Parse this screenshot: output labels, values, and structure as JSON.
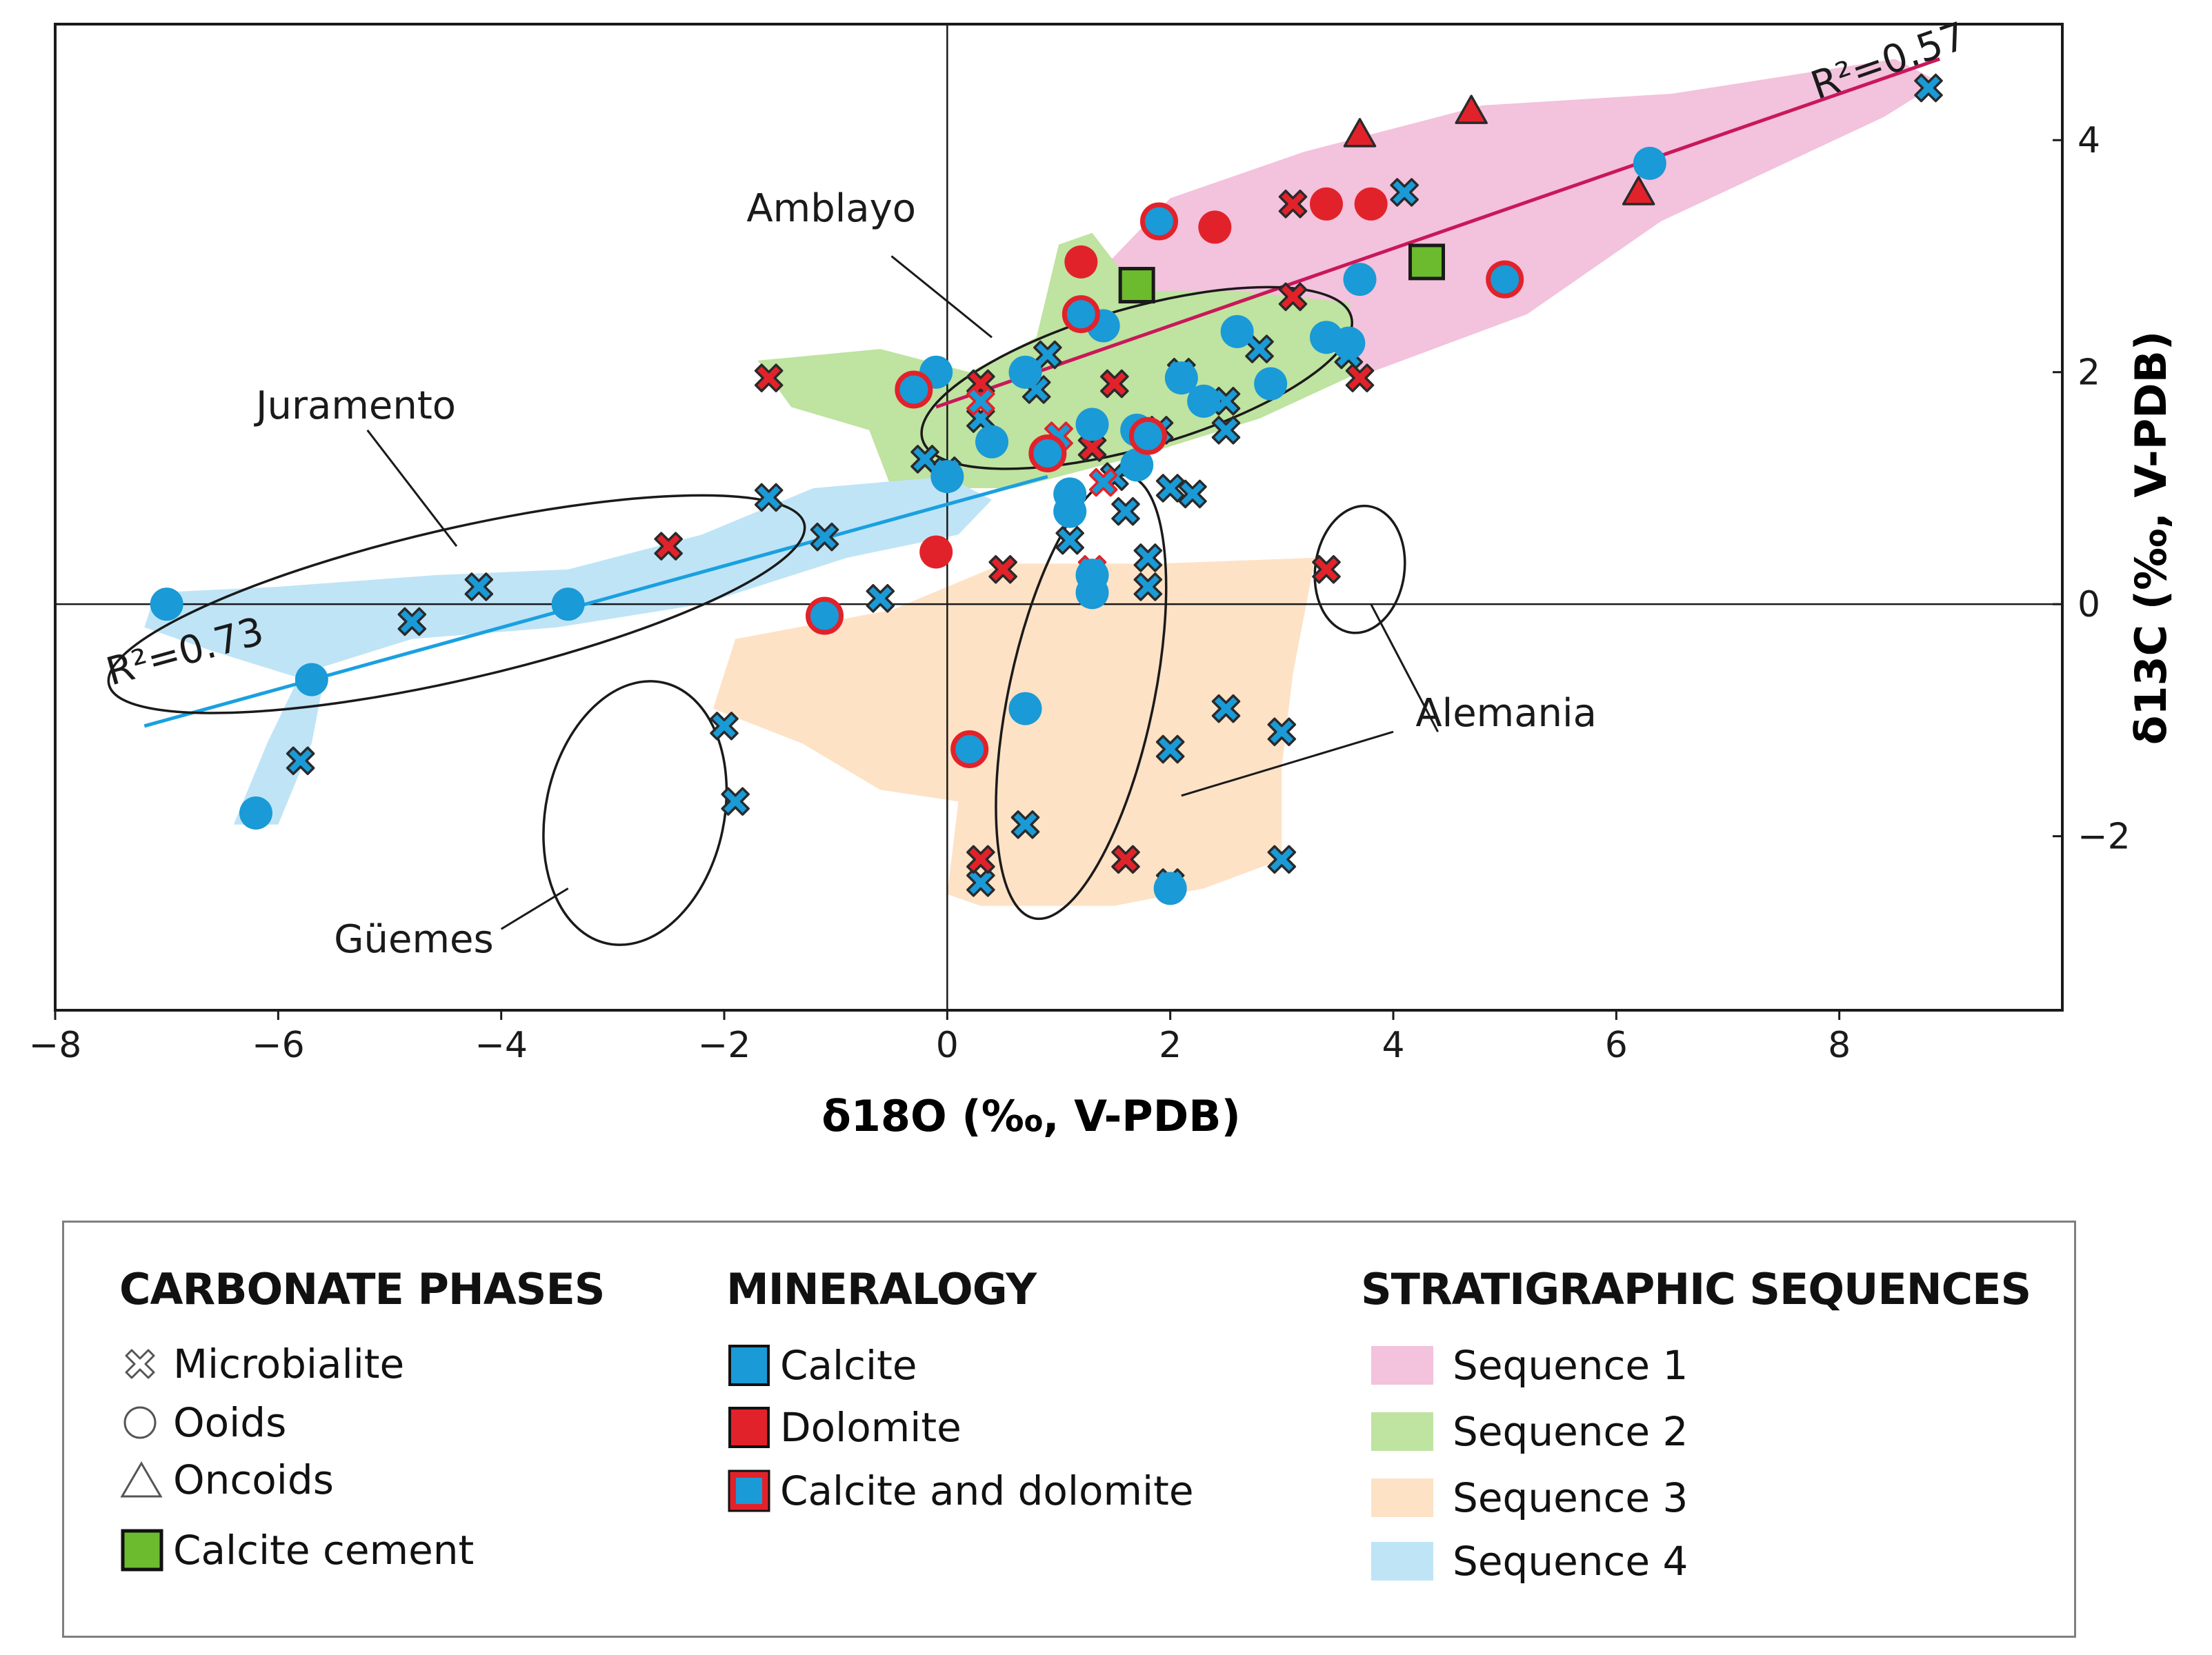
{
  "chart_data": {
    "type": "scatter",
    "xlabel": "δ18O (‰, V-PDB)",
    "ylabel": "δ13C (‰,  V-PDB)",
    "xlim": [
      -8,
      10
    ],
    "ylim": [
      -3.5,
      5
    ],
    "x_ticks": [
      -8,
      -6,
      -4,
      -2,
      0,
      2,
      4,
      6,
      8
    ],
    "x_tick_labels": [
      "−8",
      "−6",
      "−4",
      "−2",
      "0",
      "2",
      "4",
      "6",
      "8"
    ],
    "y_ticks": [
      -2,
      0,
      2,
      4
    ],
    "y_tick_labels": [
      "−2",
      "0",
      "2",
      "4"
    ],
    "colors": {
      "calcite": "#1a9ad6",
      "dolomite": "#e2222a",
      "cement": "#6cba2e",
      "seq1": "#f3c2dc",
      "seq2": "#bfe3a0",
      "seq3": "#fde2c6",
      "seq4": "#bfe4f6",
      "trend1": "#c8185a",
      "trend4": "#1aa0e0"
    },
    "trendlines": [
      {
        "name": "Sequence 1 trend",
        "label": "R²=0.57",
        "x0": -0.1,
        "y0": 1.7,
        "x1": 8.9,
        "y1": 4.7,
        "label_at": [
          7.8,
          4.35
        ],
        "color": "#c8185a"
      },
      {
        "name": "Sequence 4 trend",
        "label": "R²=0.73",
        "x0": -7.2,
        "y0": -1.05,
        "x1": 0.9,
        "y1": 1.1,
        "label_at": [
          -7.5,
          -0.7
        ],
        "color": "#1aa0e0"
      }
    ],
    "regions": [
      {
        "name": "Sequence 1",
        "fill": "#f3c2dc",
        "poly": [
          [
            1.4,
            2.9
          ],
          [
            2.0,
            3.5
          ],
          [
            3.2,
            3.9
          ],
          [
            4.8,
            4.3
          ],
          [
            6.5,
            4.4
          ],
          [
            8.5,
            4.7
          ],
          [
            8.9,
            4.5
          ],
          [
            8.4,
            4.2
          ],
          [
            6.4,
            3.3
          ],
          [
            5.2,
            2.5
          ],
          [
            3.8,
            2.0
          ],
          [
            2.4,
            2.2
          ],
          [
            1.6,
            2.5
          ]
        ]
      },
      {
        "name": "Sequence 2",
        "fill": "#bfe3a0",
        "poly": [
          [
            -1.7,
            2.1
          ],
          [
            -0.6,
            2.2
          ],
          [
            0.2,
            2.0
          ],
          [
            0.8,
            2.3
          ],
          [
            1.0,
            3.1
          ],
          [
            1.3,
            3.2
          ],
          [
            1.7,
            2.7
          ],
          [
            2.6,
            2.7
          ],
          [
            3.6,
            2.6
          ],
          [
            3.7,
            2.0
          ],
          [
            2.8,
            1.6
          ],
          [
            1.8,
            1.3
          ],
          [
            0.6,
            1.0
          ],
          [
            -0.5,
            1.0
          ],
          [
            -0.7,
            1.5
          ],
          [
            -1.4,
            1.7
          ]
        ]
      },
      {
        "name": "Sequence 3",
        "fill": "#fde2c6",
        "poly": [
          [
            -2.1,
            -0.9
          ],
          [
            -1.9,
            -0.3
          ],
          [
            -0.5,
            -0.05
          ],
          [
            0.5,
            0.35
          ],
          [
            1.9,
            0.35
          ],
          [
            3.3,
            0.4
          ],
          [
            3.1,
            -0.6
          ],
          [
            3.0,
            -1.4
          ],
          [
            3.0,
            -2.2
          ],
          [
            2.3,
            -2.45
          ],
          [
            1.5,
            -2.6
          ],
          [
            0.3,
            -2.6
          ],
          [
            0.0,
            -2.5
          ],
          [
            0.1,
            -1.7
          ],
          [
            -0.6,
            -1.6
          ],
          [
            -1.3,
            -1.2
          ]
        ]
      },
      {
        "name": "Sequence 4",
        "fill": "#bfe4f6",
        "poly": [
          [
            -7.2,
            -0.2
          ],
          [
            -7.1,
            0.1
          ],
          [
            -6.0,
            0.15
          ],
          [
            -4.6,
            0.25
          ],
          [
            -3.4,
            0.3
          ],
          [
            -2.2,
            0.6
          ],
          [
            -1.2,
            1.0
          ],
          [
            0.0,
            1.1
          ],
          [
            0.4,
            0.9
          ],
          [
            0.1,
            0.6
          ],
          [
            -0.9,
            0.4
          ],
          [
            -2.2,
            0.0
          ],
          [
            -3.5,
            -0.2
          ],
          [
            -4.8,
            -0.3
          ],
          [
            -5.8,
            -0.6
          ],
          [
            -6.1,
            -1.2
          ],
          [
            -6.4,
            -1.9
          ],
          [
            -6.0,
            -1.9
          ],
          [
            -5.7,
            -1.2
          ],
          [
            -5.6,
            -0.7
          ],
          [
            -6.6,
            -0.4
          ]
        ]
      }
    ],
    "ellipses": [
      {
        "label": "Amblayo",
        "cx": 1.7,
        "cy": 1.95,
        "rx": 2.0,
        "ry": 0.6,
        "angle_deg": -16,
        "label_at": [
          -1.8,
          3.3
        ],
        "leader": [
          [
            -0.5,
            3.0
          ],
          [
            0.4,
            2.3
          ]
        ]
      },
      {
        "label": "Juramento",
        "cx": -4.4,
        "cy": 0.0,
        "rx": 3.2,
        "ry": 0.65,
        "angle_deg": -13,
        "label_at": [
          -6.2,
          1.6
        ],
        "leader": [
          [
            -5.2,
            1.5
          ],
          [
            -4.4,
            0.5
          ]
        ]
      },
      {
        "label": "Alemania",
        "cx": 1.2,
        "cy": -0.8,
        "rx": 0.65,
        "ry": 1.95,
        "angle_deg": 12,
        "label_at": [
          4.2,
          -1.05
        ],
        "leader": [
          [
            4.0,
            -1.1
          ],
          [
            2.1,
            -1.65
          ]
        ]
      },
      {
        "label": "Güemes",
        "cx": -2.8,
        "cy": -1.8,
        "rx": 0.8,
        "ry": 1.15,
        "angle_deg": 12,
        "label_at": [
          -5.5,
          -3.0
        ],
        "leader": [
          [
            -4.0,
            -2.8
          ],
          [
            -3.4,
            -2.45
          ]
        ]
      },
      {
        "label": "",
        "cx": 3.7,
        "cy": 0.3,
        "rx": 0.4,
        "ry": 0.55,
        "angle_deg": 8,
        "leader": [
          [
            3.8,
            0.0
          ],
          [
            4.4,
            -1.1
          ]
        ]
      }
    ],
    "series": [
      {
        "name": "Microbialite – Calcite",
        "marker": "x",
        "fill": "#1a9ad6",
        "stroke": "#2a2a2a",
        "points": [
          [
            -5.8,
            -1.35
          ],
          [
            -4.8,
            -0.15
          ],
          [
            -4.2,
            0.15
          ],
          [
            -1.6,
            0.92
          ],
          [
            -1.1,
            0.58
          ],
          [
            -0.6,
            0.05
          ],
          [
            -0.2,
            1.25
          ],
          [
            0.0,
            1.15
          ],
          [
            0.3,
            1.6
          ],
          [
            0.8,
            1.85
          ],
          [
            0.9,
            2.15
          ],
          [
            1.0,
            1.45
          ],
          [
            1.1,
            0.55
          ],
          [
            1.3,
            0.25
          ],
          [
            1.5,
            1.1
          ],
          [
            1.6,
            0.8
          ],
          [
            1.8,
            0.4
          ],
          [
            1.8,
            0.15
          ],
          [
            1.9,
            1.5
          ],
          [
            2.0,
            1.0
          ],
          [
            2.1,
            2.0
          ],
          [
            2.2,
            0.95
          ],
          [
            2.5,
            1.75
          ],
          [
            2.5,
            1.5
          ],
          [
            2.8,
            2.2
          ],
          [
            3.6,
            2.15
          ],
          [
            4.1,
            3.55
          ],
          [
            8.8,
            4.45
          ],
          [
            -2.0,
            -1.05
          ],
          [
            -1.9,
            -1.7
          ],
          [
            2.0,
            -1.25
          ],
          [
            2.5,
            -0.9
          ],
          [
            3.0,
            -1.1
          ],
          [
            3.0,
            -2.2
          ],
          [
            0.7,
            -1.9
          ],
          [
            0.3,
            -2.4
          ],
          [
            2.0,
            -2.4
          ]
        ]
      },
      {
        "name": "Microbialite – Dolomite",
        "marker": "x",
        "fill": "#e2222a",
        "stroke": "#2a2a2a",
        "points": [
          [
            -1.6,
            1.95
          ],
          [
            -2.5,
            0.5
          ],
          [
            0.3,
            1.9
          ],
          [
            0.5,
            0.3
          ],
          [
            1.3,
            1.35
          ],
          [
            1.5,
            1.9
          ],
          [
            3.1,
            3.45
          ],
          [
            3.1,
            2.65
          ],
          [
            3.7,
            1.95
          ],
          [
            3.4,
            0.3
          ],
          [
            0.3,
            -2.2
          ],
          [
            1.6,
            -2.2
          ]
        ]
      },
      {
        "name": "Microbialite – Calcite and dolomite",
        "marker": "x",
        "fill": "#1a9ad6",
        "stroke": "#e2222a",
        "points": [
          [
            0.3,
            1.75
          ],
          [
            1.0,
            1.45
          ],
          [
            1.4,
            1.05
          ],
          [
            1.3,
            0.3
          ]
        ]
      },
      {
        "name": "Ooids – Calcite",
        "marker": "circle",
        "fill": "#1a9ad6",
        "stroke": "#1a9ad6",
        "points": [
          [
            -7.0,
            0.0
          ],
          [
            -5.7,
            -0.65
          ],
          [
            -6.2,
            -1.8
          ],
          [
            -3.4,
            0.0
          ],
          [
            -0.1,
            2.0
          ],
          [
            0.0,
            1.1
          ],
          [
            0.4,
            1.4
          ],
          [
            0.7,
            2.0
          ],
          [
            1.1,
            0.8
          ],
          [
            1.1,
            0.95
          ],
          [
            1.3,
            1.55
          ],
          [
            1.4,
            2.4
          ],
          [
            1.7,
            1.5
          ],
          [
            1.7,
            1.2
          ],
          [
            2.1,
            1.95
          ],
          [
            2.3,
            1.75
          ],
          [
            2.6,
            2.35
          ],
          [
            2.9,
            1.9
          ],
          [
            3.4,
            2.3
          ],
          [
            3.6,
            2.25
          ],
          [
            3.7,
            2.8
          ],
          [
            6.3,
            3.8
          ],
          [
            1.3,
            0.1
          ],
          [
            0.7,
            -0.9
          ],
          [
            2.0,
            -2.45
          ],
          [
            1.3,
            0.25
          ]
        ]
      },
      {
        "name": "Ooids – Dolomite",
        "marker": "circle",
        "fill": "#e2222a",
        "stroke": "#e2222a",
        "points": [
          [
            1.2,
            2.95
          ],
          [
            2.4,
            3.25
          ],
          [
            3.4,
            3.45
          ],
          [
            3.8,
            3.45
          ],
          [
            -0.1,
            0.45
          ]
        ]
      },
      {
        "name": "Ooids – Calcite and dolomite",
        "marker": "circle",
        "fill": "#1a9ad6",
        "stroke": "#e2222a",
        "points": [
          [
            1.9,
            3.3
          ],
          [
            1.2,
            2.5
          ],
          [
            -0.3,
            1.85
          ],
          [
            0.9,
            1.3
          ],
          [
            1.8,
            1.45
          ],
          [
            5.0,
            2.8
          ],
          [
            -1.1,
            -0.1
          ],
          [
            0.2,
            -1.25
          ]
        ]
      },
      {
        "name": "Oncoids – Dolomite",
        "marker": "triangle",
        "fill": "#e2222a",
        "stroke": "#2a2a2a",
        "points": [
          [
            3.7,
            4.05
          ],
          [
            4.7,
            4.25
          ],
          [
            6.2,
            3.55
          ]
        ]
      },
      {
        "name": "Calcite cement",
        "marker": "square",
        "fill": "#6cba2e",
        "stroke": "#1a1a1a",
        "points": [
          [
            1.7,
            2.75
          ],
          [
            4.3,
            2.95
          ]
        ]
      }
    ]
  },
  "legend": {
    "phases": {
      "title": "CARBONATE PHASES",
      "items": [
        "Microbialite",
        "Ooids",
        "Oncoids",
        "Calcite cement"
      ]
    },
    "mineralogy": {
      "title": "MINERALOGY",
      "items": [
        "Calcite",
        "Dolomite",
        "Calcite and dolomite"
      ]
    },
    "sequences": {
      "title": "STRATIGRAPHIC SEQUENCES",
      "items": [
        "Sequence 1",
        "Sequence 2",
        "Sequence 3",
        "Sequence 4"
      ]
    }
  }
}
